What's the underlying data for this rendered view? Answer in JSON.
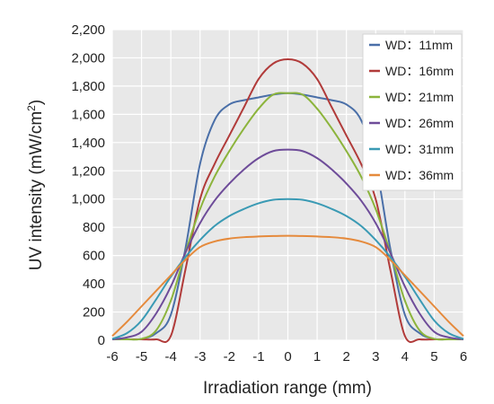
{
  "chart_data": {
    "type": "line",
    "title": "",
    "xlabel": "Irradiation range (mm)",
    "ylabel_main": "UV intensity (mW/cm",
    "ylabel_sup": "2",
    "ylabel_tail": ")",
    "xlim": [
      -6,
      6
    ],
    "ylim": [
      0,
      2200
    ],
    "x_ticks": [
      -6,
      -5,
      -4,
      -3,
      -2,
      -1,
      0,
      1,
      2,
      3,
      4,
      5,
      6
    ],
    "x_tick_labels": [
      "-6",
      "-5",
      "-4",
      "-3",
      "-2",
      "-1",
      "0",
      "1",
      "2",
      "3",
      "4",
      "5",
      "6"
    ],
    "y_ticks": [
      0,
      200,
      400,
      600,
      800,
      1000,
      1200,
      1400,
      1600,
      1800,
      2000,
      2200
    ],
    "y_tick_labels": [
      "0",
      "200",
      "400",
      "600",
      "800",
      "1,000",
      "1,200",
      "1,400",
      "1,600",
      "1,800",
      "2,000",
      "2,200"
    ],
    "grid": true,
    "legend_position": "top-right",
    "x": [
      -6,
      -5.5,
      -5,
      -4.5,
      -4,
      -3.5,
      -3,
      -2.5,
      -2,
      -1.5,
      -1,
      -0.5,
      0,
      0.5,
      1,
      1.5,
      2,
      2.5,
      3,
      3.5,
      4,
      4.5,
      5,
      5.5,
      6
    ],
    "series": [
      {
        "name": "WD：11mm",
        "color": "#4a6fa8",
        "values": [
          0,
          0,
          10,
          50,
          180,
          650,
          1250,
          1560,
          1670,
          1700,
          1720,
          1740,
          1750,
          1740,
          1720,
          1700,
          1670,
          1560,
          1250,
          650,
          180,
          50,
          10,
          0,
          0
        ]
      },
      {
        "name": "WD：16mm",
        "color": "#b13b3a",
        "values": [
          0,
          0,
          0,
          0,
          30,
          500,
          1000,
          1250,
          1450,
          1650,
          1850,
          1960,
          1990,
          1960,
          1850,
          1650,
          1450,
          1250,
          1000,
          500,
          30,
          0,
          0,
          0,
          0
        ]
      },
      {
        "name": "WD：21mm",
        "color": "#8cb43c",
        "values": [
          0,
          0,
          10,
          70,
          280,
          620,
          930,
          1160,
          1340,
          1500,
          1640,
          1740,
          1750,
          1740,
          1640,
          1500,
          1340,
          1160,
          930,
          620,
          280,
          70,
          10,
          0,
          0
        ]
      },
      {
        "name": "WD：26mm",
        "color": "#6e4c99",
        "values": [
          0,
          20,
          60,
          190,
          380,
          620,
          830,
          990,
          1110,
          1210,
          1290,
          1340,
          1350,
          1340,
          1290,
          1210,
          1110,
          990,
          830,
          620,
          380,
          190,
          60,
          20,
          0
        ]
      },
      {
        "name": "WD：31mm",
        "color": "#3a9ab4",
        "values": [
          10,
          50,
          140,
          290,
          450,
          590,
          710,
          810,
          880,
          930,
          970,
          995,
          1000,
          995,
          970,
          930,
          880,
          810,
          710,
          590,
          450,
          290,
          140,
          50,
          10
        ]
      },
      {
        "name": "WD：36mm",
        "color": "#e58a3c",
        "values": [
          30,
          130,
          240,
          350,
          460,
          570,
          660,
          700,
          720,
          730,
          735,
          738,
          740,
          738,
          735,
          730,
          720,
          700,
          660,
          570,
          460,
          350,
          240,
          130,
          30
        ]
      }
    ]
  }
}
